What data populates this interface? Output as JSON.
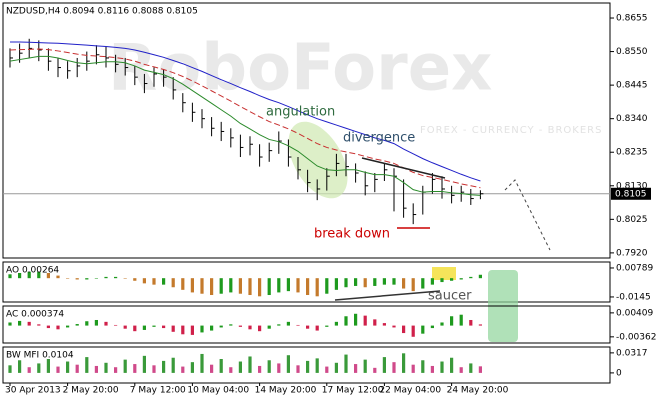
{
  "chart_data": [
    {
      "type": "ohlc",
      "title": "NZDUSD,H4 0.8094 0.8116 0.8088 0.8105",
      "watermark": "RoboForex",
      "watermark_sub": "FOREX - CURRENCY - BROKERS",
      "annotations": [
        "angulation",
        "divergence",
        "break down"
      ],
      "ylim": [
        0.7904,
        0.8702
      ],
      "yticks": [
        {
          "value": 0.8655,
          "label": "0.8655"
        },
        {
          "value": 0.855,
          "label": "0.8550"
        },
        {
          "value": 0.8445,
          "label": "0.8445"
        },
        {
          "value": 0.834,
          "label": "0.8340"
        },
        {
          "value": 0.8235,
          "label": "0.8235"
        },
        {
          "value": 0.813,
          "label": "0.8130"
        },
        {
          "value": 0.8025,
          "label": "0.8025"
        },
        {
          "value": 0.792,
          "label": "0.7920"
        }
      ],
      "current_price": 0.8105,
      "color": "#000000",
      "high": [
        0.856,
        0.8575,
        0.859,
        0.8585,
        0.856,
        0.853,
        0.852,
        0.853,
        0.855,
        0.857,
        0.8565,
        0.854,
        0.853,
        0.8505,
        0.848,
        0.85,
        0.8495,
        0.847,
        0.842,
        0.839,
        0.837,
        0.8345,
        0.833,
        0.831,
        0.829,
        0.8285,
        0.826,
        0.8265,
        0.83,
        0.8275,
        0.822,
        0.818,
        0.815,
        0.8185,
        0.823,
        0.823,
        0.82,
        0.8175,
        0.817,
        0.82,
        0.8185,
        0.815,
        0.8075,
        0.813,
        0.817,
        0.816,
        0.813,
        0.813,
        0.812,
        0.8116
      ],
      "low": [
        0.85,
        0.8515,
        0.853,
        0.852,
        0.849,
        0.847,
        0.8465,
        0.847,
        0.849,
        0.851,
        0.85,
        0.8485,
        0.8475,
        0.8445,
        0.842,
        0.844,
        0.844,
        0.84,
        0.836,
        0.833,
        0.831,
        0.8285,
        0.827,
        0.825,
        0.822,
        0.8225,
        0.819,
        0.8205,
        0.823,
        0.819,
        0.815,
        0.811,
        0.8085,
        0.8115,
        0.816,
        0.816,
        0.814,
        0.81,
        0.811,
        0.8145,
        0.805,
        0.803,
        0.801,
        0.804,
        0.8105,
        0.809,
        0.8075,
        0.808,
        0.807,
        0.8088
      ],
      "close": [
        0.853,
        0.8545,
        0.856,
        0.8555,
        0.852,
        0.85,
        0.849,
        0.8505,
        0.852,
        0.854,
        0.853,
        0.851,
        0.85,
        0.847,
        0.845,
        0.848,
        0.847,
        0.843,
        0.839,
        0.836,
        0.834,
        0.831,
        0.83,
        0.828,
        0.825,
        0.826,
        0.822,
        0.824,
        0.827,
        0.822,
        0.818,
        0.814,
        0.812,
        0.816,
        0.82,
        0.819,
        0.817,
        0.813,
        0.815,
        0.818,
        0.816,
        0.806,
        0.804,
        0.811,
        0.815,
        0.812,
        0.81,
        0.811,
        0.809,
        0.8105
      ],
      "series": [
        {
          "color": "#2020c8",
          "dash": false,
          "values": [
            0.858,
            0.858,
            0.8579,
            0.8578,
            0.8577,
            0.8576,
            0.8574,
            0.8572,
            0.857,
            0.8568,
            0.8566,
            0.8563,
            0.856,
            0.8555,
            0.8548,
            0.854,
            0.8532,
            0.8522,
            0.8512,
            0.85,
            0.8488,
            0.8475,
            0.8462,
            0.845,
            0.8437,
            0.8425,
            0.8412,
            0.84,
            0.839,
            0.8378,
            0.8365,
            0.8352,
            0.834,
            0.833,
            0.832,
            0.831,
            0.83,
            0.829,
            0.828,
            0.8272,
            0.8262,
            0.8245,
            0.823,
            0.8215,
            0.8202,
            0.819,
            0.8178,
            0.8166,
            0.8155,
            0.8145
          ]
        },
        {
          "color": "#c83030",
          "dash": true,
          "values": [
            0.8555,
            0.8556,
            0.8557,
            0.8558,
            0.8556,
            0.8552,
            0.8547,
            0.8542,
            0.8538,
            0.8536,
            0.8534,
            0.8531,
            0.8527,
            0.852,
            0.851,
            0.8502,
            0.8494,
            0.8484,
            0.8472,
            0.8458,
            0.8443,
            0.8427,
            0.8411,
            0.8395,
            0.8378,
            0.8362,
            0.8346,
            0.8331,
            0.832,
            0.8308,
            0.8294,
            0.8278,
            0.8262,
            0.825,
            0.8242,
            0.8236,
            0.823,
            0.8222,
            0.8214,
            0.8208,
            0.82,
            0.8186,
            0.8172,
            0.8162,
            0.8156,
            0.815,
            0.8143,
            0.8136,
            0.813,
            0.8124
          ]
        },
        {
          "color": "#2a8a2a",
          "dash": false,
          "values": [
            0.852,
            0.8525,
            0.853,
            0.8535,
            0.8535,
            0.853,
            0.8522,
            0.8515,
            0.8512,
            0.8515,
            0.8518,
            0.8518,
            0.8515,
            0.8505,
            0.8492,
            0.8485,
            0.8478,
            0.8465,
            0.8448,
            0.8428,
            0.8408,
            0.8388,
            0.8368,
            0.8348,
            0.8325,
            0.8308,
            0.829,
            0.8275,
            0.8268,
            0.8255,
            0.8238,
            0.8215,
            0.8192,
            0.818,
            0.8178,
            0.818,
            0.818,
            0.8172,
            0.8165,
            0.8165,
            0.816,
            0.814,
            0.8118,
            0.811,
            0.8112,
            0.8112,
            0.8108,
            0.8106,
            0.8102,
            0.81
          ]
        }
      ]
    },
    {
      "type": "bar",
      "title": "AO 0.00264",
      "annotations": [
        "saucer"
      ],
      "ylim": [
        -0.0184,
        0.0125
      ],
      "yticks": [
        0.00789,
        -0.0145
      ],
      "colors": {
        "up": "#1e9a1e",
        "down": "#c47a2c"
      },
      "values": [
        0.003,
        0.004,
        0.005,
        0.005,
        0.004,
        0.002,
        0.0,
        -0.001,
        -0.001,
        0.0,
        0.001,
        0.001,
        0.0,
        -0.002,
        -0.004,
        -0.005,
        -0.005,
        -0.007,
        -0.009,
        -0.011,
        -0.012,
        -0.013,
        -0.012,
        -0.011,
        -0.012,
        -0.013,
        -0.014,
        -0.013,
        -0.011,
        -0.01,
        -0.011,
        -0.013,
        -0.014,
        -0.012,
        -0.009,
        -0.007,
        -0.006,
        -0.007,
        -0.006,
        -0.005,
        -0.005,
        -0.008,
        -0.01,
        -0.008,
        -0.005,
        -0.003,
        -0.002,
        -0.001,
        0.001,
        0.00264
      ]
    },
    {
      "type": "bar",
      "title": "AC 0.000374",
      "ylim": [
        -0.0056,
        0.0063
      ],
      "yticks": [
        0.00409,
        -0.00362
      ],
      "colors": {
        "up": "#1e9a1e",
        "down": "#d0204a"
      },
      "values": [
        0.001,
        0.0015,
        0.0012,
        0.0004,
        -0.0008,
        -0.0012,
        -0.0006,
        0.0005,
        0.0014,
        0.0018,
        0.0012,
        0.0002,
        -0.001,
        -0.0018,
        -0.0014,
        -0.0004,
        -0.0008,
        -0.002,
        -0.0028,
        -0.003,
        -0.0022,
        -0.0016,
        -0.0006,
        0.0004,
        -0.0004,
        -0.0012,
        -0.0018,
        -0.001,
        0.0004,
        0.0012,
        0.0002,
        -0.001,
        -0.0016,
        -0.0004,
        0.0012,
        0.003,
        0.0038,
        0.0032,
        0.002,
        0.0008,
        -0.0006,
        -0.0024,
        -0.0036,
        -0.0026,
        -0.0008,
        0.001,
        0.003,
        0.0035,
        0.0018,
        0.000374
      ]
    },
    {
      "type": "bar",
      "title": "BW MFI 0.0104",
      "ylim": [
        -0.016,
        0.041
      ],
      "yticks": [
        0.0317,
        0
      ],
      "colors": {
        "up": "#3a9a3a",
        "down": "#d04a8a"
      },
      "categories": [
        "30 Apr 2013",
        null,
        null,
        null,
        null,
        null,
        "2 May 20:00",
        null,
        null,
        null,
        null,
        null,
        null,
        "7 May 12:00",
        null,
        null,
        null,
        null,
        null,
        "10 May 04:00",
        null,
        null,
        null,
        null,
        null,
        null,
        "14 May 20:00",
        null,
        null,
        null,
        null,
        null,
        null,
        "17 May 12:00",
        null,
        null,
        null,
        null,
        null,
        "22 May 04:00",
        null,
        null,
        null,
        null,
        null,
        null,
        "24 May 20:00",
        null,
        null,
        null
      ],
      "values": [
        0.012,
        0.02,
        0.009,
        0.015,
        0.022,
        0.01,
        0.018,
        0.013,
        0.025,
        0.011,
        0.016,
        0.009,
        0.021,
        0.014,
        0.027,
        0.012,
        0.019,
        0.024,
        0.01,
        0.017,
        0.03,
        0.013,
        0.022,
        0.009,
        0.018,
        0.026,
        0.011,
        0.02,
        0.015,
        0.028,
        0.012,
        0.019,
        0.023,
        0.01,
        0.016,
        0.029,
        0.014,
        0.021,
        0.008,
        0.025,
        0.017,
        0.031,
        0.013,
        0.02,
        0.011,
        0.018,
        0.024,
        0.009,
        0.015,
        0.0104
      ]
    }
  ]
}
